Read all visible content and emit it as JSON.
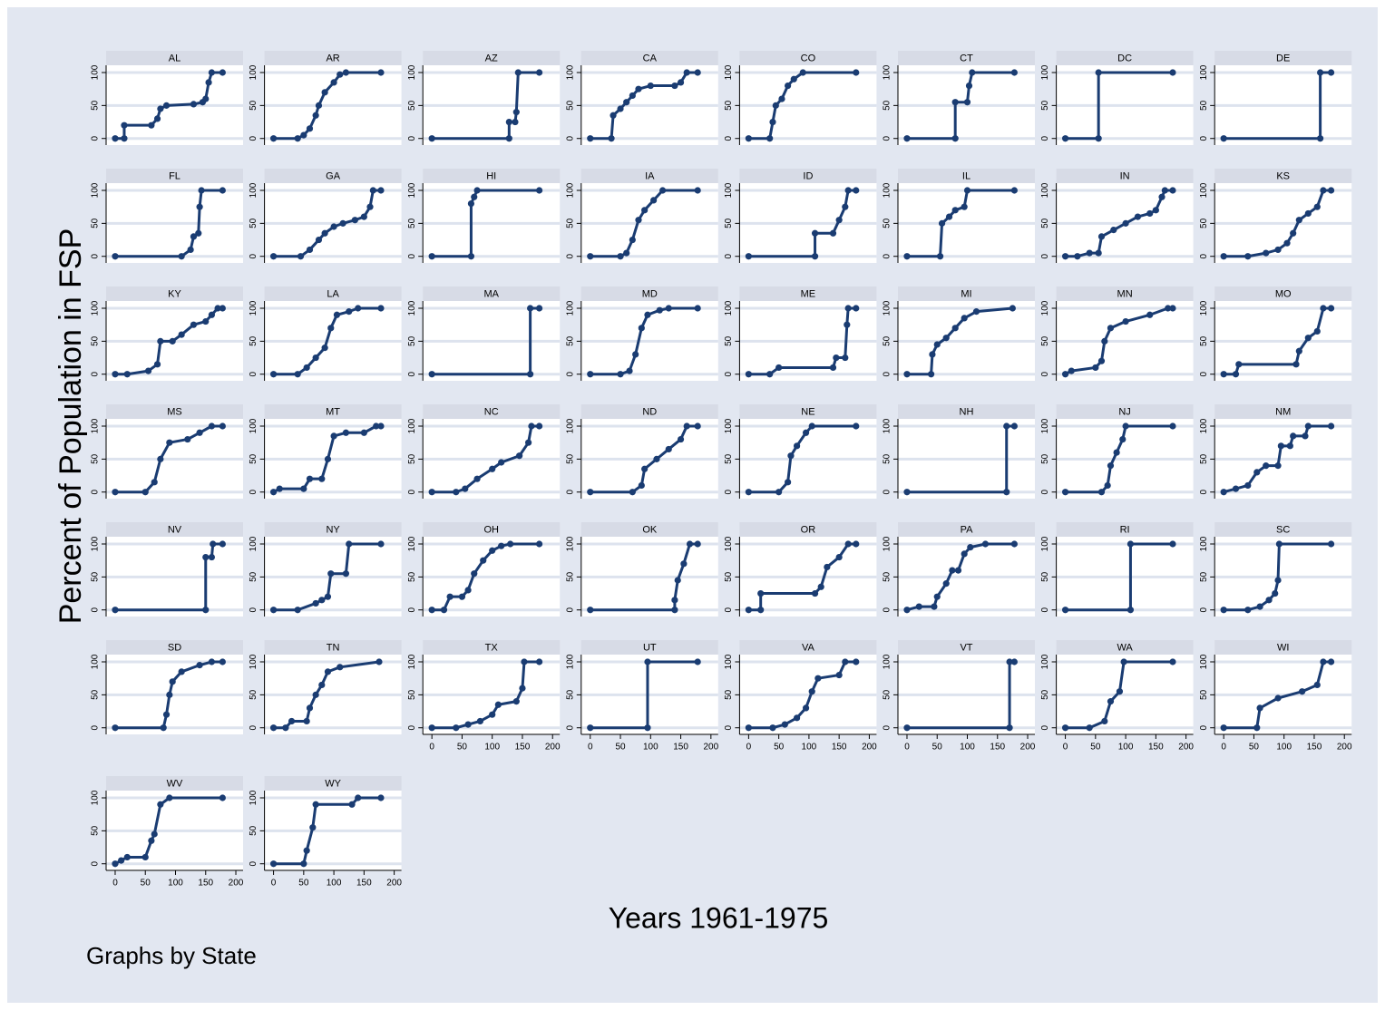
{
  "chart_data": {
    "type": "line",
    "ylabel": "Percent of Population in FSP",
    "xlabel": "Years 1961-1975",
    "note": "Graphs by State",
    "color": "#1a3c72",
    "grid": true,
    "xlim": [
      -15,
      212
    ],
    "ylim": [
      -10,
      111
    ],
    "xticks": [
      0,
      50,
      100,
      150,
      200
    ],
    "yticks": [
      0,
      50,
      100
    ],
    "series": [
      {
        "name": "AL",
        "x": [
          0,
          15,
          15,
          60,
          70,
          75,
          85,
          130,
          145,
          150,
          155,
          160,
          178
        ],
        "values": [
          0,
          0,
          20,
          20,
          30,
          45,
          50,
          52,
          55,
          60,
          85,
          100,
          100
        ]
      },
      {
        "name": "AR",
        "x": [
          0,
          40,
          50,
          60,
          70,
          75,
          85,
          100,
          110,
          120,
          178
        ],
        "values": [
          0,
          0,
          5,
          15,
          35,
          50,
          70,
          85,
          97,
          100,
          100
        ]
      },
      {
        "name": "AZ",
        "x": [
          0,
          128,
          128,
          138,
          140,
          143,
          178
        ],
        "values": [
          0,
          0,
          25,
          25,
          40,
          100,
          100
        ]
      },
      {
        "name": "CA",
        "x": [
          0,
          35,
          38,
          50,
          60,
          70,
          80,
          100,
          140,
          150,
          160,
          178
        ],
        "values": [
          0,
          0,
          35,
          45,
          55,
          65,
          75,
          80,
          80,
          85,
          100,
          100
        ]
      },
      {
        "name": "CO",
        "x": [
          0,
          35,
          40,
          45,
          55,
          65,
          75,
          90,
          178
        ],
        "values": [
          0,
          0,
          25,
          50,
          60,
          80,
          90,
          100,
          100
        ]
      },
      {
        "name": "CT",
        "x": [
          0,
          80,
          80,
          100,
          103,
          108,
          178
        ],
        "values": [
          0,
          0,
          55,
          55,
          80,
          100,
          100
        ]
      },
      {
        "name": "DC",
        "x": [
          0,
          55,
          55,
          178
        ],
        "values": [
          0,
          0,
          100,
          100
        ]
      },
      {
        "name": "DE",
        "x": [
          0,
          160,
          160,
          178
        ],
        "values": [
          0,
          0,
          100,
          100
        ]
      },
      {
        "name": "FL",
        "x": [
          0,
          110,
          125,
          130,
          138,
          140,
          143,
          178
        ],
        "values": [
          0,
          0,
          10,
          30,
          35,
          75,
          100,
          100
        ]
      },
      {
        "name": "GA",
        "x": [
          0,
          45,
          60,
          75,
          85,
          100,
          115,
          135,
          150,
          160,
          165,
          178
        ],
        "values": [
          0,
          0,
          10,
          25,
          35,
          45,
          50,
          55,
          60,
          75,
          100,
          100
        ]
      },
      {
        "name": "HI",
        "x": [
          0,
          65,
          65,
          70,
          75,
          178
        ],
        "values": [
          0,
          0,
          80,
          90,
          100,
          100
        ]
      },
      {
        "name": "IA",
        "x": [
          0,
          50,
          60,
          70,
          80,
          90,
          105,
          120,
          178
        ],
        "values": [
          0,
          0,
          5,
          25,
          55,
          70,
          85,
          100,
          100
        ]
      },
      {
        "name": "ID",
        "x": [
          0,
          110,
          110,
          140,
          150,
          160,
          165,
          178
        ],
        "values": [
          0,
          0,
          35,
          35,
          55,
          75,
          100,
          100
        ]
      },
      {
        "name": "IL",
        "x": [
          0,
          55,
          58,
          70,
          80,
          95,
          100,
          178
        ],
        "values": [
          0,
          0,
          50,
          60,
          70,
          75,
          100,
          100
        ]
      },
      {
        "name": "IN",
        "x": [
          0,
          20,
          40,
          55,
          60,
          80,
          100,
          120,
          140,
          150,
          160,
          165,
          178
        ],
        "values": [
          0,
          0,
          5,
          5,
          30,
          40,
          50,
          60,
          65,
          70,
          90,
          100,
          100
        ]
      },
      {
        "name": "KS",
        "x": [
          0,
          40,
          70,
          90,
          105,
          115,
          125,
          140,
          155,
          165,
          178
        ],
        "values": [
          0,
          0,
          5,
          10,
          20,
          35,
          55,
          65,
          75,
          100,
          100
        ]
      },
      {
        "name": "KY",
        "x": [
          0,
          20,
          55,
          70,
          75,
          95,
          110,
          130,
          150,
          160,
          170,
          178
        ],
        "values": [
          0,
          0,
          5,
          15,
          50,
          50,
          60,
          75,
          80,
          90,
          100,
          100
        ]
      },
      {
        "name": "LA",
        "x": [
          0,
          40,
          55,
          70,
          85,
          95,
          105,
          125,
          140,
          178
        ],
        "values": [
          0,
          0,
          10,
          25,
          40,
          70,
          90,
          95,
          100,
          100
        ]
      },
      {
        "name": "MA",
        "x": [
          0,
          163,
          163,
          178
        ],
        "values": [
          0,
          0,
          100,
          100
        ]
      },
      {
        "name": "MD",
        "x": [
          0,
          50,
          65,
          75,
          85,
          95,
          115,
          130,
          178
        ],
        "values": [
          0,
          0,
          5,
          30,
          70,
          90,
          97,
          100,
          100
        ]
      },
      {
        "name": "ME",
        "x": [
          0,
          35,
          50,
          140,
          145,
          160,
          163,
          165,
          178
        ],
        "values": [
          0,
          0,
          10,
          10,
          25,
          25,
          75,
          100,
          100
        ]
      },
      {
        "name": "MI",
        "x": [
          0,
          40,
          42,
          50,
          65,
          80,
          95,
          115,
          175
        ],
        "values": [
          0,
          0,
          30,
          45,
          55,
          70,
          85,
          95,
          100
        ]
      },
      {
        "name": "MN",
        "x": [
          0,
          10,
          50,
          60,
          65,
          75,
          100,
          140,
          170,
          178
        ],
        "values": [
          0,
          5,
          10,
          20,
          50,
          70,
          80,
          90,
          100,
          100
        ]
      },
      {
        "name": "MO",
        "x": [
          0,
          20,
          25,
          120,
          125,
          140,
          155,
          165,
          178
        ],
        "values": [
          0,
          0,
          15,
          15,
          35,
          55,
          65,
          100,
          100
        ]
      },
      {
        "name": "MS",
        "x": [
          0,
          50,
          65,
          75,
          90,
          120,
          140,
          160,
          178
        ],
        "values": [
          0,
          0,
          15,
          50,
          75,
          80,
          90,
          100,
          100
        ]
      },
      {
        "name": "MT",
        "x": [
          0,
          10,
          50,
          60,
          80,
          90,
          100,
          120,
          150,
          170,
          178
        ],
        "values": [
          0,
          5,
          5,
          20,
          20,
          50,
          85,
          90,
          90,
          100,
          100
        ]
      },
      {
        "name": "NC",
        "x": [
          0,
          40,
          55,
          75,
          100,
          115,
          145,
          160,
          165,
          178
        ],
        "values": [
          0,
          0,
          5,
          20,
          35,
          45,
          55,
          75,
          100,
          100
        ]
      },
      {
        "name": "ND",
        "x": [
          0,
          70,
          85,
          90,
          110,
          130,
          150,
          160,
          178
        ],
        "values": [
          0,
          0,
          10,
          35,
          50,
          65,
          80,
          100,
          100
        ]
      },
      {
        "name": "NE",
        "x": [
          0,
          50,
          65,
          70,
          80,
          95,
          105,
          178
        ],
        "values": [
          0,
          0,
          15,
          55,
          70,
          90,
          100,
          100
        ]
      },
      {
        "name": "NH",
        "x": [
          0,
          165,
          165,
          178
        ],
        "values": [
          0,
          0,
          100,
          100
        ]
      },
      {
        "name": "NJ",
        "x": [
          0,
          60,
          70,
          75,
          85,
          95,
          100,
          178
        ],
        "values": [
          0,
          0,
          10,
          40,
          60,
          80,
          100,
          100
        ]
      },
      {
        "name": "NM",
        "x": [
          0,
          20,
          40,
          55,
          70,
          90,
          95,
          110,
          115,
          135,
          140,
          178
        ],
        "values": [
          0,
          5,
          10,
          30,
          40,
          40,
          70,
          70,
          85,
          85,
          100,
          100
        ]
      },
      {
        "name": "NV",
        "x": [
          0,
          150,
          150,
          160,
          162,
          178
        ],
        "values": [
          0,
          0,
          80,
          80,
          100,
          100
        ]
      },
      {
        "name": "NY",
        "x": [
          0,
          40,
          70,
          80,
          90,
          95,
          120,
          125,
          178
        ],
        "values": [
          0,
          0,
          10,
          15,
          20,
          55,
          55,
          100,
          100
        ]
      },
      {
        "name": "OH",
        "x": [
          0,
          20,
          30,
          50,
          60,
          70,
          85,
          100,
          115,
          130,
          178
        ],
        "values": [
          0,
          0,
          20,
          20,
          30,
          55,
          75,
          90,
          97,
          100,
          100
        ]
      },
      {
        "name": "OK",
        "x": [
          0,
          140,
          140,
          145,
          155,
          165,
          178
        ],
        "values": [
          0,
          0,
          15,
          45,
          70,
          100,
          100
        ]
      },
      {
        "name": "OR",
        "x": [
          0,
          20,
          20,
          110,
          120,
          130,
          150,
          165,
          178
        ],
        "values": [
          0,
          0,
          25,
          25,
          35,
          65,
          80,
          100,
          100
        ]
      },
      {
        "name": "PA",
        "x": [
          0,
          20,
          45,
          50,
          65,
          75,
          85,
          95,
          105,
          130,
          178
        ],
        "values": [
          0,
          5,
          5,
          20,
          40,
          60,
          60,
          85,
          95,
          100,
          100
        ]
      },
      {
        "name": "RI",
        "x": [
          0,
          108,
          108,
          178
        ],
        "values": [
          0,
          0,
          100,
          100
        ]
      },
      {
        "name": "SC",
        "x": [
          0,
          40,
          60,
          75,
          85,
          90,
          92,
          178
        ],
        "values": [
          0,
          0,
          5,
          15,
          25,
          45,
          100,
          100
        ]
      },
      {
        "name": "SD",
        "x": [
          0,
          80,
          85,
          90,
          95,
          110,
          140,
          160,
          178
        ],
        "values": [
          0,
          0,
          20,
          50,
          70,
          85,
          95,
          100,
          100
        ]
      },
      {
        "name": "TN",
        "x": [
          0,
          20,
          30,
          55,
          60,
          70,
          80,
          90,
          110,
          175
        ],
        "values": [
          0,
          0,
          10,
          10,
          30,
          50,
          65,
          85,
          92,
          100
        ]
      },
      {
        "name": "TX",
        "x": [
          0,
          40,
          60,
          80,
          100,
          110,
          140,
          150,
          153,
          178
        ],
        "values": [
          0,
          0,
          5,
          10,
          20,
          35,
          40,
          60,
          100,
          100
        ]
      },
      {
        "name": "UT",
        "x": [
          0,
          95,
          95,
          178
        ],
        "values": [
          0,
          0,
          100,
          100
        ]
      },
      {
        "name": "VA",
        "x": [
          0,
          40,
          60,
          80,
          95,
          105,
          115,
          150,
          160,
          178
        ],
        "values": [
          0,
          0,
          5,
          15,
          30,
          55,
          75,
          80,
          100,
          100
        ]
      },
      {
        "name": "VT",
        "x": [
          0,
          170,
          170,
          178
        ],
        "values": [
          0,
          0,
          100,
          100
        ]
      },
      {
        "name": "WA",
        "x": [
          0,
          40,
          65,
          75,
          90,
          97,
          178
        ],
        "values": [
          0,
          0,
          10,
          40,
          55,
          100,
          100
        ]
      },
      {
        "name": "WI",
        "x": [
          0,
          55,
          60,
          90,
          130,
          155,
          165,
          178
        ],
        "values": [
          0,
          0,
          30,
          45,
          55,
          65,
          100,
          100
        ]
      },
      {
        "name": "WV",
        "x": [
          0,
          10,
          20,
          50,
          60,
          65,
          75,
          90,
          178
        ],
        "values": [
          0,
          5,
          10,
          10,
          35,
          45,
          90,
          100,
          100
        ]
      },
      {
        "name": "WY",
        "x": [
          0,
          50,
          55,
          65,
          70,
          130,
          140,
          178
        ],
        "values": [
          0,
          0,
          20,
          55,
          90,
          90,
          100,
          100
        ]
      }
    ]
  }
}
